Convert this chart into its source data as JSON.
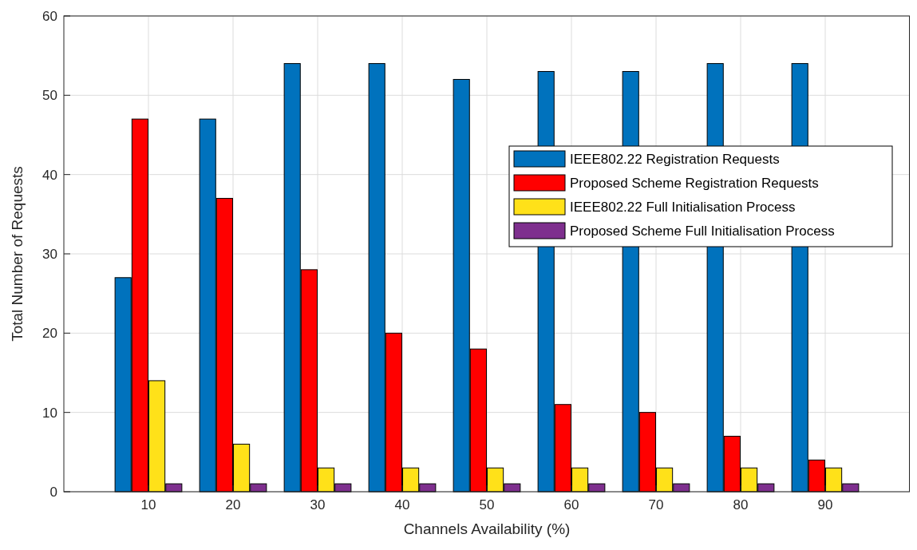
{
  "chart_data": {
    "type": "bar",
    "xlabel": "Channels Availability (%)",
    "ylabel": "Total Number of Requests",
    "x": [
      10,
      20,
      30,
      40,
      50,
      60,
      70,
      80,
      90
    ],
    "xlim": [
      0,
      100
    ],
    "xticks": [
      10,
      20,
      30,
      40,
      50,
      60,
      70,
      80,
      90
    ],
    "ylim": [
      0,
      60
    ],
    "yticks": [
      0,
      10,
      20,
      30,
      40,
      50,
      60
    ],
    "grid": true,
    "legend": "top right",
    "series": [
      {
        "name": "IEEE802.22 Registration Requests",
        "color": "#0072bd",
        "values": [
          27,
          47,
          54,
          54,
          52,
          53,
          53,
          54,
          54
        ]
      },
      {
        "name": "Proposed Scheme Registration Requests",
        "color": "#ff0000",
        "values": [
          47,
          37,
          28,
          20,
          18,
          11,
          10,
          7,
          4
        ]
      },
      {
        "name": "IEEE802.22 Full Initialisation Process",
        "color": "#ffe119",
        "values": [
          14,
          6,
          3,
          3,
          3,
          3,
          3,
          3,
          3
        ]
      },
      {
        "name": "Proposed Scheme Full Initialisation Process",
        "color": "#7e2f8e",
        "values": [
          1,
          1,
          1,
          1,
          1,
          1,
          1,
          1,
          1
        ]
      }
    ]
  }
}
